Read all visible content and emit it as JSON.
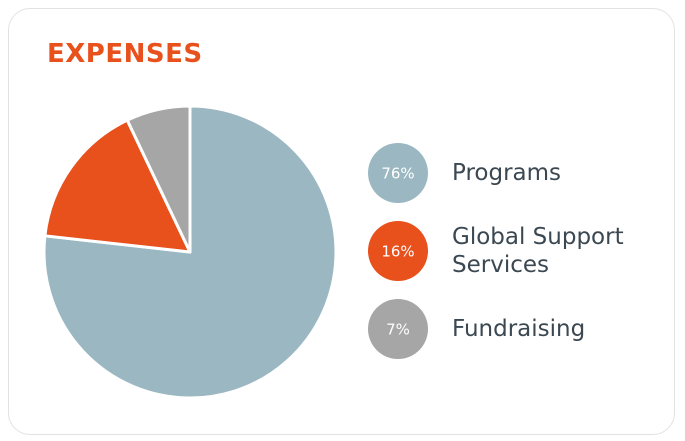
{
  "chart_data": {
    "type": "pie",
    "title": "EXPENSES",
    "categories": [
      "Programs",
      "Global Support Services",
      "Fundraising"
    ],
    "values": [
      76,
      16,
      7
    ],
    "value_labels": [
      "76%",
      "16%",
      "7%"
    ],
    "colors": [
      "#9bb8c2",
      "#e8501c",
      "#a6a6a6"
    ]
  }
}
